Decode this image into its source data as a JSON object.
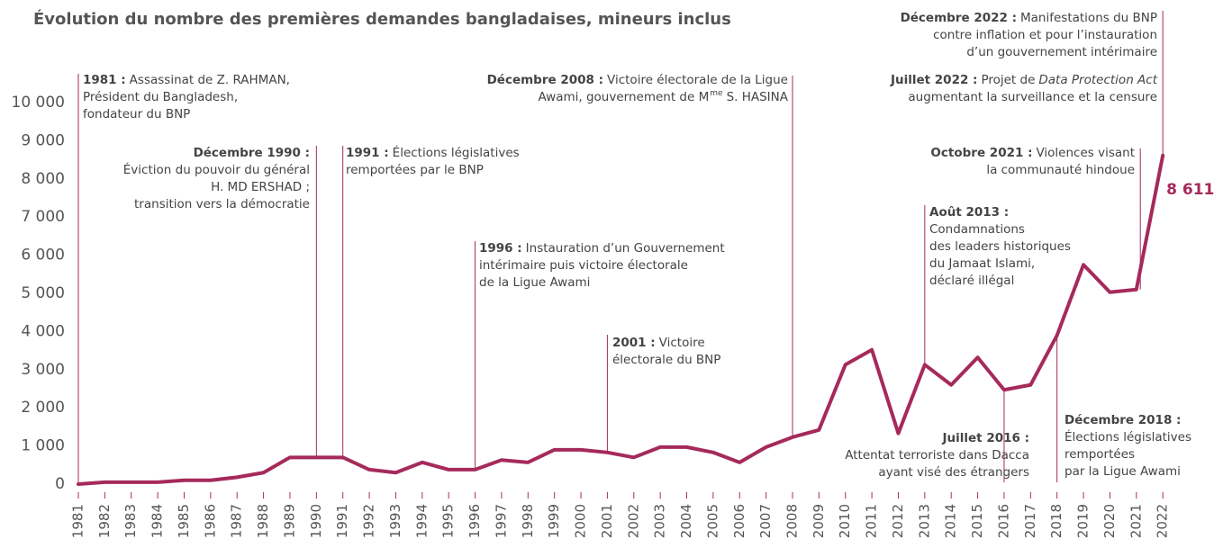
{
  "chart_data": {
    "type": "line",
    "title": "Évolution du nombre des premières demandes bangladaises, mineurs inclus",
    "categories": [
      "1981",
      "1982",
      "1983",
      "1984",
      "1985",
      "1986",
      "1987",
      "1988",
      "1989",
      "1990",
      "1991",
      "1992",
      "1993",
      "1994",
      "1995",
      "1996",
      "1997",
      "1998",
      "1999",
      "2000",
      "2001",
      "2002",
      "2003",
      "2004",
      "2005",
      "2006",
      "2007",
      "2008",
      "2009",
      "2010",
      "2011",
      "2012",
      "2013",
      "2014",
      "2015",
      "2016",
      "2017",
      "2018",
      "2019",
      "2020",
      "2021",
      "2022"
    ],
    "series": [
      {
        "name": "Premières demandes",
        "color": "#a52a5b",
        "values": [
          0,
          50,
          50,
          50,
          100,
          100,
          180,
          300,
          700,
          700,
          700,
          380,
          300,
          570,
          380,
          380,
          630,
          570,
          900,
          900,
          830,
          700,
          970,
          970,
          830,
          570,
          970,
          1230,
          1420,
          3130,
          3520,
          1330,
          3130,
          2600,
          3320,
          2470,
          2600,
          3900,
          5750,
          5030,
          5100,
          8611
        ],
        "value_labels": {
          "41": "8 611"
        }
      }
    ],
    "ylim": [
      0,
      10000
    ],
    "yticks": [
      0,
      {
        "value": 1000,
        "label": "1 000"
      },
      {
        "value": 2000,
        "label": "2 000"
      },
      {
        "value": 3000,
        "label": "3 000"
      },
      {
        "value": 4000,
        "label": "4 000"
      },
      {
        "value": 5000,
        "label": "5 000"
      },
      {
        "value": 6000,
        "label": "6 000"
      },
      {
        "value": 7000,
        "label": "7 000"
      },
      {
        "value": 8000,
        "label": "8 000"
      },
      {
        "value": 9000,
        "label": "9 000"
      },
      {
        "value": 10000,
        "label": "10 000"
      }
    ],
    "annotations": [
      {
        "label": "1981 :",
        "lines": [
          "Assassinat de Z. RAHMAN,",
          "Président du Bangladesh,",
          "fondateur du BNP"
        ]
      },
      {
        "label": "Décembre 1990 :",
        "lines": [
          "Éviction du pouvoir du général",
          "H. MD ERSHAD ;",
          "transition vers la démocratie"
        ]
      },
      {
        "label": "1991 :",
        "lines": [
          "Élections législatives",
          "remportées par le BNP"
        ]
      },
      {
        "label": "1996 :",
        "lines": [
          "Instauration d’un Gouvernement",
          "intérimaire puis victoire électorale",
          "de la Ligue Awami"
        ]
      },
      {
        "label": "2001 :",
        "lines": [
          "Victoire",
          "électorale du BNP"
        ]
      },
      {
        "label": "Décembre 2008 :",
        "lines": [
          "Victoire électorale de la Ligue",
          [
            "Awami, gouvernement de M",
            "me",
            "S. HASINA"
          ]
        ]
      },
      {
        "label": "Août 2013 :",
        "lines": [
          "Condamnations",
          "des leaders historiques",
          "du Jamaat Islami,",
          "déclaré illégal"
        ]
      },
      {
        "label": "Juillet 2016 :",
        "lines": [
          "Attentat terroriste dans Dacca",
          "ayant visé des étrangers"
        ]
      },
      {
        "label": "Décembre 2018 :",
        "lines": [
          "Élections législatives",
          "remportées",
          "par la Ligue Awami"
        ]
      },
      {
        "label": "Octobre 2021 :",
        "lines": [
          "Violences visant",
          "la communauté hindoue"
        ]
      },
      {
        "label": "Juillet 2022 :",
        "lines": [
          [
            "Projet de",
            "Data Protection Act"
          ],
          "augmentant la surveillance et la censure"
        ]
      },
      {
        "label": "Décembre 2022 :",
        "lines": [
          "Manifestations du BNP",
          "contre inflation et pour l’instauration",
          "d’un gouvernement intérimaire"
        ]
      }
    ]
  }
}
